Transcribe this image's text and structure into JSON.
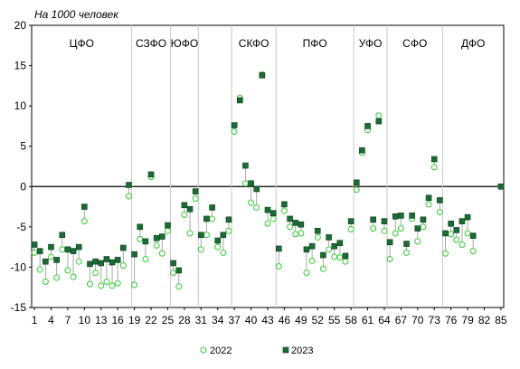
{
  "chart_data": {
    "type": "scatter",
    "title": "На 1000 человек",
    "ylim": [
      -15,
      20
    ],
    "yticks": [
      -15,
      -10,
      -5,
      0,
      5,
      10,
      15,
      20
    ],
    "xlim": [
      0.5,
      85.5
    ],
    "xticks": [
      1,
      4,
      7,
      10,
      13,
      16,
      19,
      22,
      25,
      28,
      31,
      34,
      37,
      40,
      43,
      46,
      49,
      52,
      55,
      58,
      61,
      64,
      67,
      70,
      73,
      76,
      79,
      82,
      85
    ],
    "dividers": [
      18.5,
      25.5,
      30.5,
      36.5,
      44.5,
      58.5,
      64.5,
      74.5
    ],
    "regions": [
      {
        "label": "ЦФО",
        "x": 9.5
      },
      {
        "label": "СЗФО",
        "x": 22
      },
      {
        "label": "ЮФО",
        "x": 28
      },
      {
        "label": "СКФО",
        "x": 40.5
      },
      {
        "label": "ПФО",
        "x": 51.5
      },
      {
        "label": "УФО",
        "x": 61.5
      },
      {
        "label": "СФО",
        "x": 69.5
      },
      {
        "label": "ДФО",
        "x": 80
      }
    ],
    "series": [
      {
        "name": "2022",
        "color": "#33cc33",
        "marker": "circle-open",
        "values": [
          -8.2,
          -10.3,
          -11.8,
          -8.7,
          -11.3,
          -7.8,
          -10.4,
          -11.2,
          -9.3,
          -4.3,
          -12.1,
          -10.7,
          -12.3,
          -11.8,
          -12.3,
          -12.0,
          -9.8,
          -1.2,
          -12.2,
          -6.5,
          -9.0,
          1.2,
          -7.3,
          -8.3,
          -5.5,
          -10.7,
          -12.4,
          -3.5,
          -5.8,
          -1.5,
          -7.8,
          -6.0,
          -4.0,
          -7.5,
          -8.2,
          -5.5,
          6.8,
          11.0,
          0.4,
          -2.0,
          -2.6,
          13.9,
          -4.6,
          -4.0,
          -9.9,
          -3.0,
          -5.0,
          -5.9,
          -5.8,
          -10.7,
          -9.2,
          -6.3,
          -10.2,
          -7.8,
          -8.7,
          -8.8,
          -9.3,
          -5.3,
          -0.4,
          4.2,
          7.0,
          -5.2,
          8.8,
          -5.5,
          -9.0,
          -5.8,
          -5.2,
          -8.2,
          -4.0,
          -6.8,
          -5.0,
          -2.2,
          2.4,
          -3.2,
          -8.3,
          -5.9,
          -6.6,
          -7.2,
          -5.8,
          -8.0,
          0.0
        ],
        "x": [
          1,
          2,
          3,
          4,
          5,
          6,
          7,
          8,
          9,
          10,
          11,
          12,
          13,
          14,
          15,
          16,
          17,
          18,
          19,
          20,
          21,
          22,
          23,
          24,
          25,
          26,
          27,
          28,
          29,
          30,
          31,
          32,
          33,
          34,
          35,
          36,
          37,
          38,
          39,
          40,
          41,
          42,
          43,
          44,
          45,
          46,
          47,
          48,
          49,
          50,
          51,
          52,
          53,
          54,
          55,
          56,
          57,
          58,
          59,
          60,
          61,
          62,
          63,
          64,
          65,
          66,
          67,
          68,
          69,
          70,
          71,
          72,
          73,
          74,
          75,
          76,
          77,
          78,
          79,
          80,
          85
        ]
      },
      {
        "name": "2023",
        "color": "#1a6b35",
        "marker": "square-filled",
        "values": [
          -7.2,
          -8.0,
          -9.3,
          -7.5,
          -9.1,
          -6.0,
          -7.8,
          -8.0,
          -7.5,
          -2.5,
          -9.6,
          -9.3,
          -9.5,
          -9.0,
          -9.4,
          -9.1,
          -7.6,
          0.2,
          -8.4,
          -5.0,
          -6.8,
          1.5,
          -6.4,
          -6.2,
          -4.8,
          -9.5,
          -10.4,
          -2.3,
          -2.8,
          -0.6,
          -6.0,
          -4.0,
          -2.6,
          -6.7,
          -6.0,
          -4.1,
          7.6,
          10.7,
          2.6,
          0.4,
          -0.3,
          13.8,
          -2.9,
          -3.3,
          -7.7,
          -2.2,
          -4.0,
          -4.5,
          -4.7,
          -7.8,
          -7.4,
          -5.5,
          -8.5,
          -6.3,
          -7.4,
          -7.0,
          -8.6,
          -4.3,
          0.5,
          4.5,
          7.5,
          -4.1,
          8.1,
          -4.3,
          -6.9,
          -3.7,
          -3.6,
          -7.1,
          -3.6,
          -5.2,
          -4.1,
          -1.4,
          3.4,
          -1.7,
          -5.8,
          -4.6,
          -5.4,
          -4.3,
          -3.8,
          -6.1,
          0.0
        ],
        "x": [
          1,
          2,
          3,
          4,
          5,
          6,
          7,
          8,
          9,
          10,
          11,
          12,
          13,
          14,
          15,
          16,
          17,
          18,
          19,
          20,
          21,
          22,
          23,
          24,
          25,
          26,
          27,
          28,
          29,
          30,
          31,
          32,
          33,
          34,
          35,
          36,
          37,
          38,
          39,
          40,
          41,
          42,
          43,
          44,
          45,
          46,
          47,
          48,
          49,
          50,
          51,
          52,
          53,
          54,
          55,
          56,
          57,
          58,
          59,
          60,
          61,
          62,
          63,
          64,
          65,
          66,
          67,
          68,
          69,
          70,
          71,
          72,
          73,
          74,
          75,
          76,
          77,
          78,
          79,
          80,
          85
        ]
      }
    ],
    "legend": {
      "position": "bottom",
      "items": [
        "2022",
        "2023"
      ]
    }
  }
}
